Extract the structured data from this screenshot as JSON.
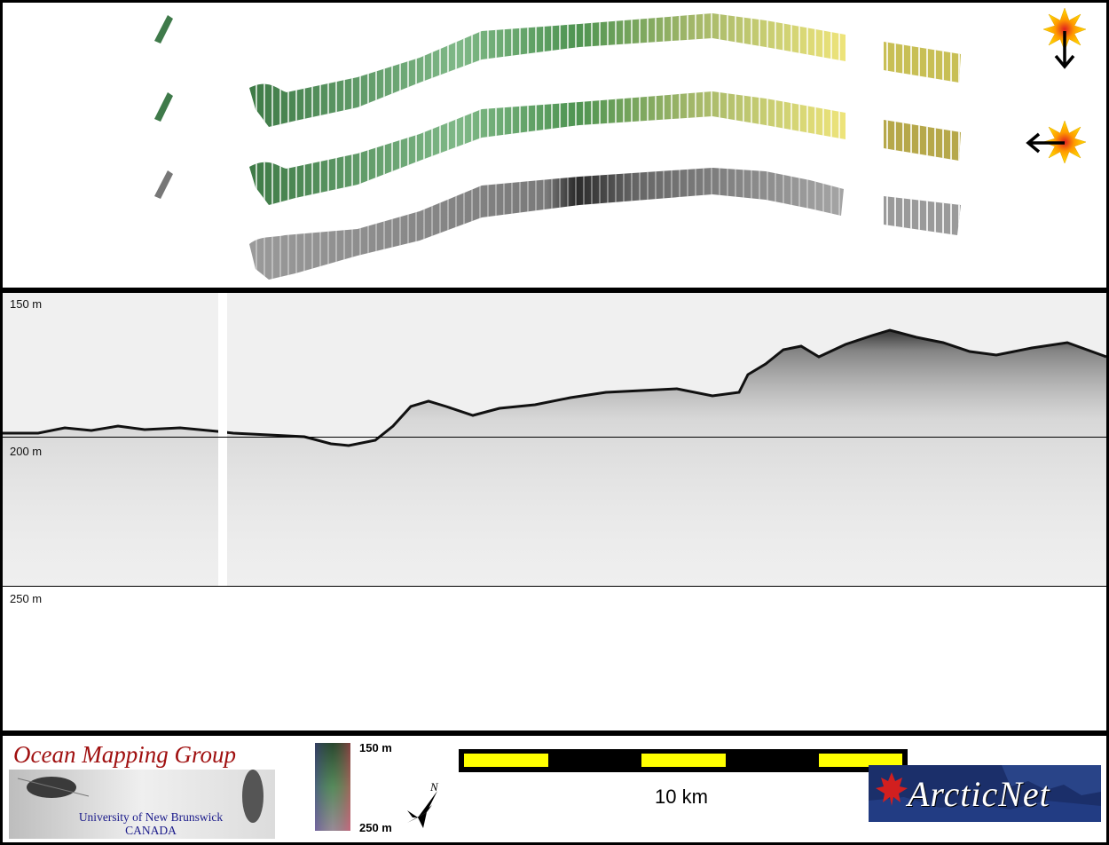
{
  "profile": {
    "depth_labels": {
      "top": "150 m",
      "middle": "200 m",
      "bottom": "250 m"
    },
    "colors": {
      "background": "#f0f0f0",
      "seafloor": "#1a1a1a",
      "gap": "#ffffff"
    }
  },
  "map": {
    "colors": {
      "shaded_relief_start": "#3f7a4a",
      "shaded_relief_mid": "#8fbd8a",
      "shaded_relief_end": "#e8e07a",
      "backscatter": "#8a8a8a"
    },
    "icons": {
      "sun_top": "sun-icon",
      "arrow_top": "arrow-down-icon",
      "sun_mid": "sun-icon",
      "arrow_mid": "arrow-left-icon"
    }
  },
  "legend": {
    "ocean_mapping_group": "Ocean Mapping Group",
    "university": "University of New Brunswick",
    "country": "CANADA",
    "colorbar_top": "150 m",
    "colorbar_bottom": "250 m",
    "compass_label": "N",
    "scale_label": "10 km",
    "arcticnet": "ArcticNet",
    "colors": {
      "scale_fill": "#ffff00",
      "scale_alt": "#000000",
      "arcticnet_bg": "#1b2f6a",
      "brand_red": "#a01010"
    }
  }
}
